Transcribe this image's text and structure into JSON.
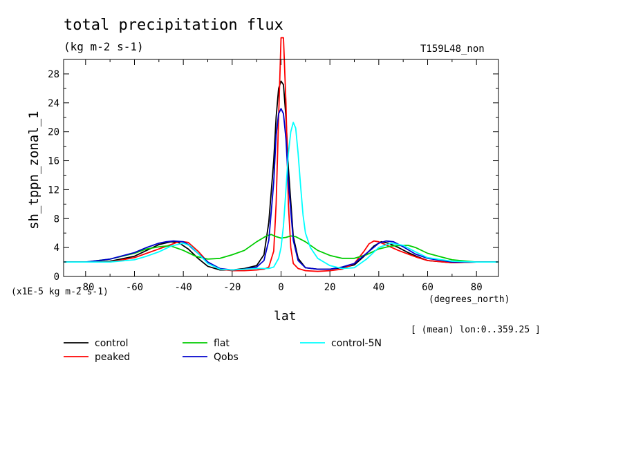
{
  "chart_data": {
    "type": "line",
    "title": "total precipitation flux",
    "subtitle": "(kg m-2 s-1)",
    "top_right_label": "T159L48_non",
    "xlabel": "lat",
    "ylabel": "sh_tppn_zonal_1",
    "x_units": "(degrees_north)",
    "y_units": "(x1E-5 kg m-2 s-1)",
    "note": "[ (mean) lon:0..359.25 ]",
    "xlim": [
      -89,
      89
    ],
    "ylim": [
      0,
      30
    ],
    "xticks": [
      -80,
      -60,
      -40,
      -20,
      0,
      20,
      40,
      60,
      80
    ],
    "yticks": [
      0,
      4,
      8,
      12,
      16,
      20,
      24,
      28
    ],
    "legend_placement": "bottom",
    "series": [
      {
        "name": "control",
        "color": "#000000",
        "x": [
          -89,
          -80,
          -70,
          -60,
          -55,
          -50,
          -45,
          -42,
          -38,
          -34,
          -30,
          -25,
          -20,
          -15,
          -10,
          -7,
          -5,
          -3,
          -2,
          -1,
          0,
          1,
          2,
          3,
          5,
          7,
          10,
          15,
          20,
          25,
          30,
          34,
          38,
          41,
          44,
          48,
          52,
          56,
          60,
          70,
          80,
          89
        ],
        "y": [
          2.0,
          2.0,
          2.1,
          2.8,
          3.6,
          4.4,
          4.8,
          4.7,
          3.8,
          2.5,
          1.4,
          0.9,
          0.9,
          1.1,
          1.5,
          3.0,
          7.5,
          16.0,
          22.0,
          26.0,
          27.0,
          26.5,
          22.0,
          15.0,
          5.5,
          2.5,
          1.2,
          1.0,
          1.0,
          1.2,
          1.6,
          2.8,
          4.2,
          4.8,
          4.6,
          4.0,
          3.3,
          2.7,
          2.2,
          1.9,
          2.0,
          2.0
        ]
      },
      {
        "name": "peaked",
        "color": "#ff0000",
        "x": [
          -89,
          -80,
          -70,
          -60,
          -55,
          -50,
          -45,
          -42,
          -40,
          -38,
          -34,
          -30,
          -25,
          -20,
          -15,
          -10,
          -7,
          -5,
          -3,
          -2,
          -1,
          0,
          1,
          2,
          3,
          4,
          5,
          7,
          10,
          15,
          20,
          25,
          30,
          34,
          36,
          38,
          40,
          44,
          48,
          52,
          56,
          60,
          70,
          80,
          89
        ],
        "y": [
          2.0,
          2.0,
          2.0,
          2.6,
          3.2,
          3.8,
          4.4,
          4.8,
          4.8,
          4.7,
          3.5,
          2.0,
          1.0,
          0.8,
          0.8,
          0.9,
          1.0,
          1.3,
          3.5,
          10.0,
          22.0,
          33.0,
          33.0,
          24.0,
          10.0,
          4.0,
          1.8,
          1.1,
          0.8,
          0.7,
          0.8,
          1.0,
          1.8,
          3.5,
          4.5,
          4.9,
          4.8,
          4.2,
          3.6,
          3.1,
          2.6,
          2.2,
          1.9,
          2.0,
          2.0
        ]
      },
      {
        "name": "flat",
        "color": "#00cc00",
        "x": [
          -89,
          -80,
          -70,
          -60,
          -55,
          -50,
          -47,
          -45,
          -40,
          -35,
          -30,
          -25,
          -20,
          -15,
          -10,
          -6,
          -4,
          -2,
          0,
          2,
          4,
          6,
          10,
          15,
          20,
          25,
          30,
          35,
          40,
          45,
          50,
          52,
          55,
          60,
          70,
          80,
          89
        ],
        "y": [
          2.0,
          2.0,
          2.4,
          3.2,
          3.8,
          4.1,
          4.2,
          4.2,
          3.6,
          2.8,
          2.4,
          2.5,
          3.0,
          3.6,
          4.8,
          5.6,
          5.8,
          5.5,
          5.3,
          5.4,
          5.6,
          5.5,
          4.8,
          3.6,
          2.9,
          2.5,
          2.5,
          3.0,
          3.8,
          4.2,
          4.3,
          4.3,
          4.0,
          3.2,
          2.3,
          2.0,
          2.0
        ]
      },
      {
        "name": "Qobs",
        "color": "#0000cc",
        "x": [
          -89,
          -80,
          -70,
          -60,
          -55,
          -50,
          -47,
          -44,
          -40,
          -38,
          -35,
          -30,
          -25,
          -20,
          -15,
          -10,
          -7,
          -5,
          -3,
          -2,
          -1,
          0,
          1,
          2,
          3,
          5,
          7,
          10,
          15,
          20,
          25,
          30,
          35,
          40,
          43,
          46,
          50,
          55,
          60,
          70,
          80,
          89
        ],
        "y": [
          2.0,
          2.0,
          2.4,
          3.3,
          4.0,
          4.6,
          4.8,
          4.9,
          4.8,
          4.4,
          3.5,
          2.0,
          1.1,
          0.9,
          1.0,
          1.3,
          2.2,
          5.0,
          13.0,
          19.5,
          22.5,
          23.2,
          22.5,
          19.0,
          13.0,
          5.0,
          2.2,
          1.2,
          1.0,
          1.0,
          1.3,
          1.8,
          3.2,
          4.6,
          4.9,
          4.8,
          4.1,
          3.1,
          2.5,
          2.0,
          2.0,
          2.0
        ]
      },
      {
        "name": "control-5N",
        "color": "#00ffff",
        "x": [
          -89,
          -80,
          -70,
          -60,
          -55,
          -50,
          -45,
          -40,
          -37,
          -34,
          -30,
          -25,
          -20,
          -15,
          -10,
          -5,
          -3,
          -1,
          0,
          1,
          2,
          3,
          4,
          5,
          6,
          7,
          8,
          9,
          10,
          12,
          15,
          20,
          25,
          30,
          35,
          40,
          45,
          50,
          55,
          60,
          70,
          80,
          89
        ],
        "y": [
          2.0,
          2.0,
          2.0,
          2.3,
          2.8,
          3.4,
          4.2,
          4.6,
          4.2,
          3.2,
          1.8,
          1.0,
          0.9,
          1.0,
          1.1,
          1.1,
          1.3,
          2.5,
          4.0,
          7.0,
          12.0,
          17.0,
          20.0,
          21.3,
          20.5,
          17.0,
          12.5,
          8.5,
          6.0,
          4.0,
          2.5,
          1.5,
          1.1,
          1.2,
          2.4,
          4.0,
          4.6,
          4.3,
          3.4,
          2.6,
          2.1,
          2.0,
          2.0
        ]
      }
    ]
  }
}
